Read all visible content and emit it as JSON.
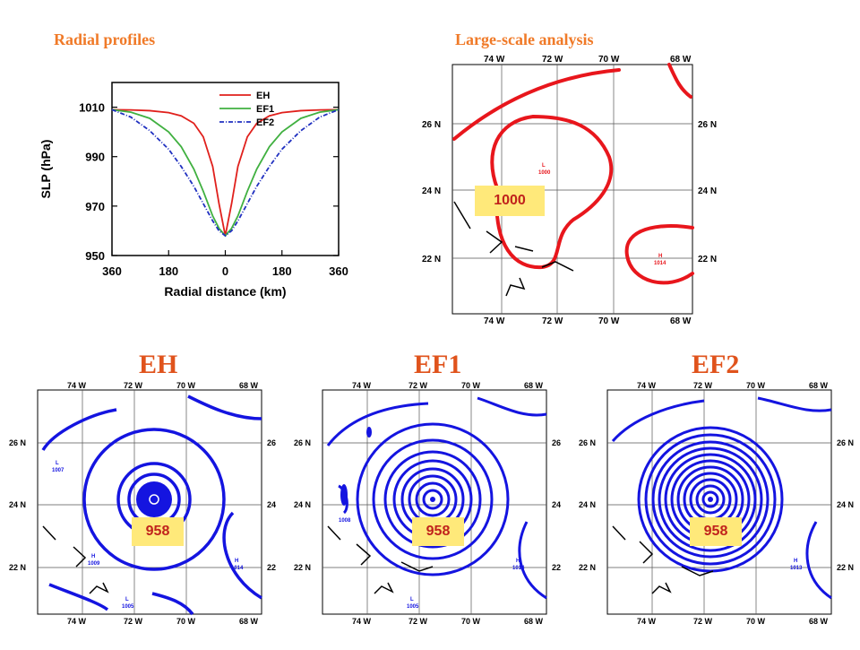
{
  "titles": {
    "radial": "Radial profiles",
    "large": "Large-scale analysis",
    "eh": "EH",
    "ef1": "EF1",
    "ef2": "EF2"
  },
  "map_labels": {
    "lon": [
      "74 W",
      "72 W",
      "70 W",
      "68 W"
    ],
    "lat": [
      "26 N",
      "24 N",
      "22 N"
    ]
  },
  "badges": {
    "large": "1000",
    "eh": "958",
    "ef1": "958",
    "ef2": "958"
  },
  "contour_labels": {
    "large": [
      "L",
      "1000",
      "H",
      "1014"
    ],
    "eh": [
      "L",
      "1007",
      "H",
      "1009",
      "H",
      "1014",
      "L",
      "1005"
    ],
    "ef1": [
      "1008",
      "H",
      "1014",
      "L",
      "1005"
    ],
    "ef2": [
      "H",
      "1013"
    ]
  },
  "colors": {
    "title": "#f07a28",
    "big_title": "#e0531c",
    "eh": "#e0201c",
    "ef1": "#40b040",
    "ef2": "#2030c0",
    "contour_red": "#e8161c",
    "contour_blue": "#1414e0",
    "badge_bg": "#ffe97a",
    "badge_text": "#c0221c"
  },
  "chart_data": {
    "type": "line",
    "title": "",
    "xlabel": "Radial distance (km)",
    "ylabel": "SLP (hPa)",
    "x_ticks": [
      "360",
      "180",
      "0",
      "180",
      "360"
    ],
    "y_ticks": [
      "950",
      "970",
      "990",
      "1010"
    ],
    "xlim": [
      -360,
      360
    ],
    "ylim": [
      950,
      1020
    ],
    "legend": "top-right",
    "series": [
      {
        "name": "EH",
        "color": "#e0201c",
        "x": [
          -360,
          -300,
          -240,
          -180,
          -140,
          -100,
          -70,
          -40,
          -20,
          0,
          20,
          40,
          70,
          100,
          140,
          180,
          240,
          300,
          360
        ],
        "y": [
          1009,
          1008.9,
          1008.6,
          1007.8,
          1006.5,
          1003.5,
          998,
          986,
          971,
          958,
          971,
          986,
          998,
          1003.5,
          1006.5,
          1007.8,
          1008.6,
          1008.9,
          1009
        ]
      },
      {
        "name": "EF1",
        "color": "#40b040",
        "x": [
          -360,
          -300,
          -240,
          -180,
          -140,
          -100,
          -70,
          -40,
          -20,
          0,
          20,
          40,
          70,
          100,
          140,
          180,
          240,
          300,
          360
        ],
        "y": [
          1009,
          1008,
          1005.5,
          1000,
          994,
          985,
          976,
          966,
          961,
          958,
          961,
          966,
          976,
          985,
          994,
          1000,
          1005.5,
          1008,
          1009
        ]
      },
      {
        "name": "EF2",
        "color": "#2030c0",
        "x": [
          -360,
          -300,
          -240,
          -180,
          -140,
          -100,
          -70,
          -40,
          -20,
          0,
          20,
          40,
          70,
          100,
          140,
          180,
          240,
          300,
          360
        ],
        "y": [
          1009,
          1006,
          1000.5,
          993,
          986,
          978,
          971,
          964,
          960,
          958,
          960,
          964,
          971,
          978,
          986,
          993,
          1000.5,
          1006,
          1009
        ]
      }
    ]
  }
}
